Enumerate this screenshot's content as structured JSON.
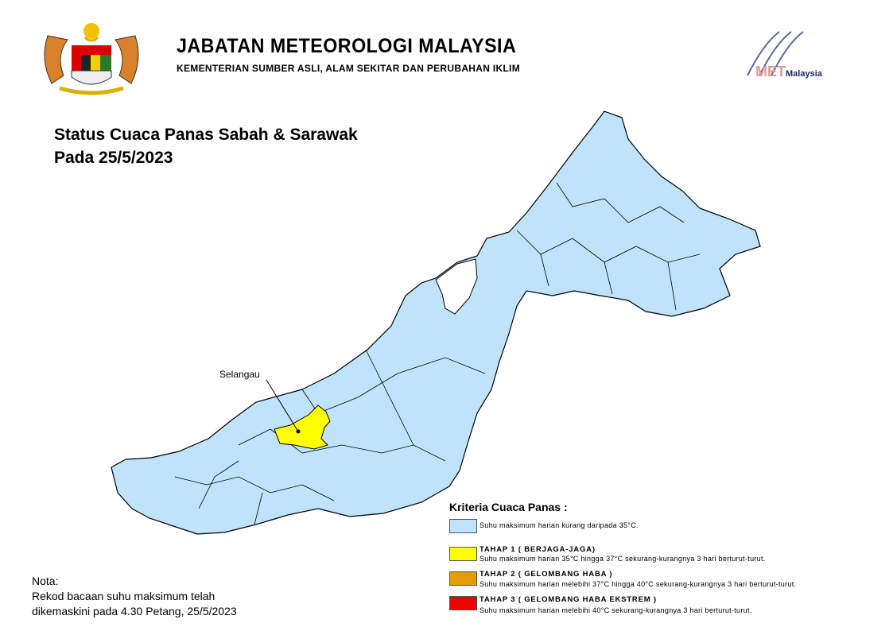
{
  "header": {
    "title": "JABATAN METEOROLOGI MALAYSIA",
    "subtitle": "KEMENTERIAN SUMBER ASLI, ALAM SEKITAR DAN PERUBAHAN IKLIM",
    "logo_left": "Jata Negara Malaysia coat of arms",
    "logo_right_text": "MET",
    "logo_right_suffix": "Malaysia"
  },
  "map": {
    "title_line1": "Status Cuaca Panas Sabah & Sarawak",
    "title_line2": "Pada 25/5/2023",
    "highlighted_district": "Selangau",
    "highlighted_level": "TAHAP 1",
    "colors": {
      "normal": "#bfe3fb",
      "tahap1": "#ffff00",
      "tahap2": "#e39b07",
      "tahap3": "#ef0000",
      "border": "#000000"
    }
  },
  "legend": {
    "title": "Kriteria Cuaca Panas :",
    "items": [
      {
        "heading": "",
        "desc": "Suhu maksimum harian kurang daripada 35°C.",
        "color": "#bfe3fb"
      },
      {
        "heading": "TAHAP 1 ( BERJAGA-JAGA)",
        "desc": "Suhu maksimum harian 35°C hingga 37°C sekurang-kurangnya 3 hari berturut-turut.",
        "color": "#ffff00"
      },
      {
        "heading": "TAHAP 2 ( GELOMBANG HABA )",
        "desc": "Suhu maksimum harian melebihi 37°C hingga 40°C sekurang-kurangnya 3 hari berturut-turut.",
        "color": "#e39b07"
      },
      {
        "heading": "TAHAP 3 ( GELOMBANG HABA EKSTREM )",
        "desc": "Suhu maksimum harian melebihi 40°C  sekurang-kurangnya 3 hari berturut-turut.",
        "color": "#ef0000"
      }
    ]
  },
  "note": {
    "label": "Nota:",
    "line1": "Rekod bacaan suhu maksimum telah",
    "line2": "dikemaskini pada 4.30 Petang, 25/5/2023"
  }
}
